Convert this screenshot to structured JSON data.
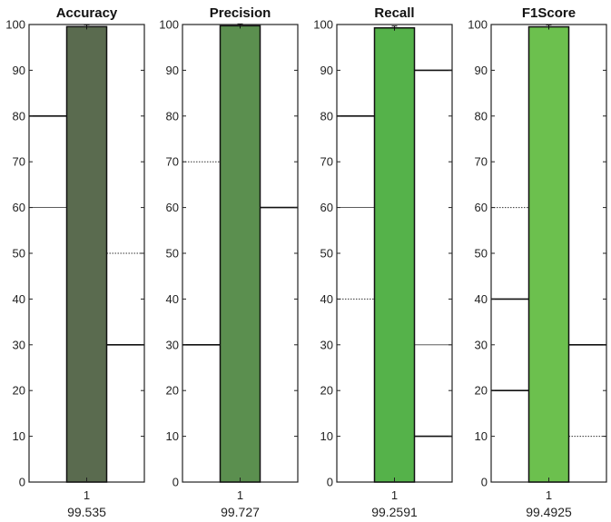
{
  "chart_data": [
    {
      "type": "bar",
      "title": "Accuracy",
      "categories": [
        "1"
      ],
      "values": [
        99.535
      ],
      "value_label": "99.535",
      "ylim": [
        0,
        100
      ],
      "yticks": [
        0,
        10,
        20,
        30,
        40,
        50,
        60,
        70,
        80,
        90,
        100
      ],
      "bar_color": "#5a6b4f",
      "guide_lines": [
        {
          "side": "left",
          "y": 80,
          "style": "solid"
        },
        {
          "side": "left",
          "y": 60,
          "style": "thin"
        },
        {
          "side": "right",
          "y": 50,
          "style": "dotted"
        },
        {
          "side": "right",
          "y": 30,
          "style": "solid"
        }
      ]
    },
    {
      "type": "bar",
      "title": "Precision",
      "categories": [
        "1"
      ],
      "values": [
        99.727
      ],
      "value_label": "99.727",
      "ylim": [
        0,
        100
      ],
      "yticks": [
        0,
        10,
        20,
        30,
        40,
        50,
        60,
        70,
        80,
        90,
        100
      ],
      "bar_color": "#5b8f4f",
      "guide_lines": [
        {
          "side": "left",
          "y": 70,
          "style": "dotted"
        },
        {
          "side": "left",
          "y": 30,
          "style": "solid"
        },
        {
          "side": "right",
          "y": 60,
          "style": "solid"
        }
      ]
    },
    {
      "type": "bar",
      "title": "Recall",
      "categories": [
        "1"
      ],
      "values": [
        99.2591
      ],
      "value_label": "99.2591",
      "ylim": [
        0,
        100
      ],
      "yticks": [
        0,
        10,
        20,
        30,
        40,
        50,
        60,
        70,
        80,
        90,
        100
      ],
      "bar_color": "#55b24a",
      "guide_lines": [
        {
          "side": "left",
          "y": 80,
          "style": "solid"
        },
        {
          "side": "left",
          "y": 60,
          "style": "thin"
        },
        {
          "side": "left",
          "y": 40,
          "style": "dotted"
        },
        {
          "side": "right",
          "y": 90,
          "style": "solid"
        },
        {
          "side": "right",
          "y": 30,
          "style": "thin"
        },
        {
          "side": "right",
          "y": 10,
          "style": "solid"
        }
      ]
    },
    {
      "type": "bar",
      "title": "F1Score",
      "categories": [
        "1"
      ],
      "values": [
        99.4925
      ],
      "value_label": "99.4925",
      "ylim": [
        0,
        100
      ],
      "yticks": [
        0,
        10,
        20,
        30,
        40,
        50,
        60,
        70,
        80,
        90,
        100
      ],
      "bar_color": "#6cc04e",
      "guide_lines": [
        {
          "side": "left",
          "y": 60,
          "style": "dotted"
        },
        {
          "side": "left",
          "y": 40,
          "style": "solid"
        },
        {
          "side": "left",
          "y": 20,
          "style": "solid"
        },
        {
          "side": "right",
          "y": 30,
          "style": "solid"
        },
        {
          "side": "right",
          "y": 10,
          "style": "dotted"
        }
      ]
    }
  ]
}
